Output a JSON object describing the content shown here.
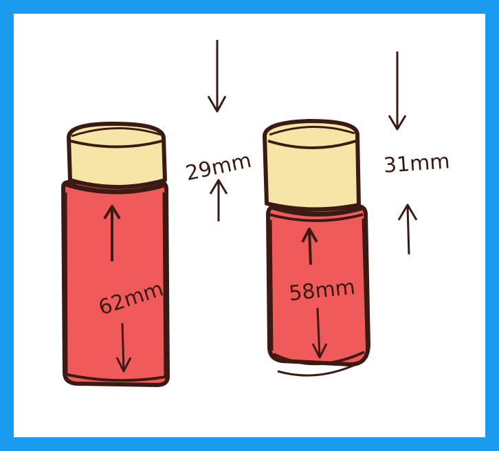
{
  "frame": {
    "border_color": "#1a9bf0",
    "background_color": "#ffffff"
  },
  "colors": {
    "outline": "#3a1a12",
    "cap_fill": "#f5e6a8",
    "body_fill": "#f05a5a"
  },
  "bottles": [
    {
      "cap_height_label": "29mm",
      "body_height_label": "62mm"
    },
    {
      "cap_height_label": "31mm",
      "body_height_label": "58mm"
    }
  ]
}
